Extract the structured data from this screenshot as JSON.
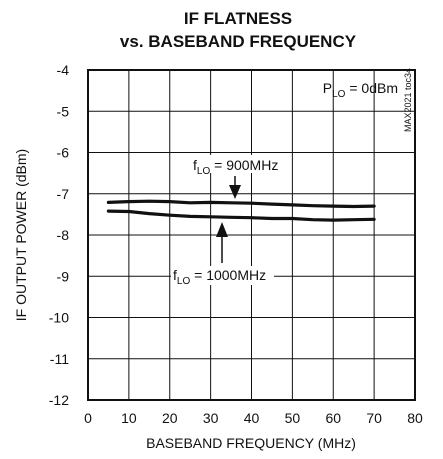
{
  "chart_data": {
    "type": "line",
    "title": [
      "IF FLATNESS",
      "vs. BASEBAND FREQUENCY"
    ],
    "xlabel": "BASEBAND FREQUENCY (MHz)",
    "ylabel": "IF OUTPUT POWER (dBm)",
    "xlim": [
      0,
      80
    ],
    "ylim": [
      -12,
      -4
    ],
    "xticks": [
      0,
      10,
      20,
      30,
      40,
      50,
      60,
      70,
      80
    ],
    "yticks": [
      -4,
      -5,
      -6,
      -7,
      -8,
      -9,
      -10,
      -11,
      -12
    ],
    "grid": true,
    "condition": {
      "main": "P",
      "sub": "LO",
      "rest": " = 0dBm"
    },
    "code": "MAX2021 toc34",
    "series": [
      {
        "name": "fLO = 900MHz",
        "x": [
          5,
          10,
          15,
          20,
          25,
          30,
          35,
          40,
          45,
          50,
          55,
          60,
          65,
          70
        ],
        "y": [
          -7.21,
          -7.19,
          -7.18,
          -7.19,
          -7.22,
          -7.21,
          -7.22,
          -7.23,
          -7.25,
          -7.27,
          -7.29,
          -7.3,
          -7.31,
          -7.3
        ]
      },
      {
        "name": "fLO = 1000MHz",
        "x": [
          5,
          10,
          15,
          20,
          25,
          30,
          35,
          40,
          45,
          50,
          55,
          60,
          65,
          70
        ],
        "y": [
          -7.42,
          -7.43,
          -7.48,
          -7.52,
          -7.55,
          -7.56,
          -7.57,
          -7.58,
          -7.6,
          -7.6,
          -7.63,
          -7.64,
          -7.63,
          -7.62
        ]
      }
    ],
    "annotations": [
      {
        "main": "f",
        "sub": "LO",
        "rest": " = 900MHz"
      },
      {
        "main": "f",
        "sub": "LO",
        "rest": " = 1000MHz"
      }
    ]
  }
}
